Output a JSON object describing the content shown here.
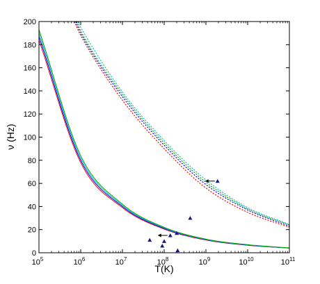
{
  "chart_data": {
    "type": "line",
    "xlabel": "T(K)",
    "ylabel": "ν (Hz)",
    "xscale": "log",
    "xlim": [
      100000,
      100000000000
    ],
    "ylim": [
      0,
      200
    ],
    "grid": false,
    "legend": "none",
    "x_ticks": [
      {
        "value": 100000,
        "base": "10",
        "exp": "5"
      },
      {
        "value": 1000000,
        "base": "10",
        "exp": "6"
      },
      {
        "value": 10000000,
        "base": "10",
        "exp": "7"
      },
      {
        "value": 100000000,
        "base": "10",
        "exp": "8"
      },
      {
        "value": 1000000000,
        "base": "10",
        "exp": "9"
      },
      {
        "value": 10000000000,
        "base": "10",
        "exp": "10"
      },
      {
        "value": 100000000000,
        "base": "10",
        "exp": "11"
      }
    ],
    "y_ticks": [
      {
        "value": 0,
        "label": "0"
      },
      {
        "value": 20,
        "label": "20"
      },
      {
        "value": 40,
        "label": "40"
      },
      {
        "value": 60,
        "label": "60"
      },
      {
        "value": 80,
        "label": "80"
      },
      {
        "value": 100,
        "label": "100"
      },
      {
        "value": 120,
        "label": "120"
      },
      {
        "value": 140,
        "label": "140"
      },
      {
        "value": 160,
        "label": "160"
      },
      {
        "value": 180,
        "label": "180"
      },
      {
        "value": 200,
        "label": "200"
      }
    ],
    "series": [
      {
        "style": "solid",
        "color": "#ff0000",
        "x": [
          100000,
          1000000,
          10000000,
          100000000,
          1000000000,
          10000000000,
          100000000000
        ],
        "y": [
          184,
          78,
          39,
          20.5,
          11,
          6.5,
          4
        ]
      },
      {
        "style": "solid",
        "color": "#0000ff",
        "x": [
          100000,
          1000000,
          10000000,
          100000000,
          1000000000,
          10000000000,
          100000000000
        ],
        "y": [
          187,
          80,
          40,
          21,
          11.3,
          6.6,
          4
        ]
      },
      {
        "style": "solid",
        "color": "#00bfbf",
        "x": [
          100000,
          1000000,
          10000000,
          100000000,
          1000000000,
          10000000000,
          100000000000
        ],
        "y": [
          190,
          82,
          41,
          21.5,
          11.5,
          6.8,
          4
        ]
      },
      {
        "style": "solid",
        "color": "#00a000",
        "x": [
          100000,
          1000000,
          10000000,
          100000000,
          1000000000,
          10000000000,
          100000000000
        ],
        "y": [
          193,
          84,
          42,
          22,
          11.8,
          7,
          4.2
        ]
      },
      {
        "style": "dotted",
        "color": "#ff0000",
        "x": [
          700000,
          1000000,
          10000000,
          100000000,
          1000000000,
          10000000000,
          100000000000
        ],
        "y": [
          200,
          188,
          132,
          90,
          56,
          35,
          22
        ]
      },
      {
        "style": "dotted",
        "color": "#0000ff",
        "x": [
          750000,
          1000000,
          10000000,
          100000000,
          1000000000,
          10000000000,
          100000000000
        ],
        "y": [
          200,
          190,
          135,
          93,
          59,
          37,
          23
        ]
      },
      {
        "style": "dotted",
        "color": "#00a000",
        "x": [
          800000,
          1000000,
          10000000,
          100000000,
          1000000000,
          10000000000,
          100000000000
        ],
        "y": [
          200,
          192,
          137,
          95,
          61,
          38,
          24
        ]
      },
      {
        "style": "dotted",
        "color": "#00bfbf",
        "x": [
          850000,
          1000000,
          10000000,
          100000000,
          1000000000,
          10000000000,
          100000000000
        ],
        "y": [
          200,
          195,
          139,
          97,
          63,
          39,
          24.5
        ]
      }
    ],
    "markers": [
      {
        "x": 45000000,
        "y": 11
      },
      {
        "x": 90000000,
        "y": 6
      },
      {
        "x": 100000000,
        "y": 10
      },
      {
        "x": 140000000,
        "y": 15
      },
      {
        "x": 200000000,
        "y": 17
      },
      {
        "x": 210000000,
        "y": 2
      },
      {
        "x": 420000000,
        "y": 30
      },
      {
        "x": 1900000000,
        "y": 62
      }
    ],
    "arrows": [
      {
        "x": 1900000000,
        "y": 62
      },
      {
        "x": 140000000,
        "y": 15
      }
    ]
  }
}
